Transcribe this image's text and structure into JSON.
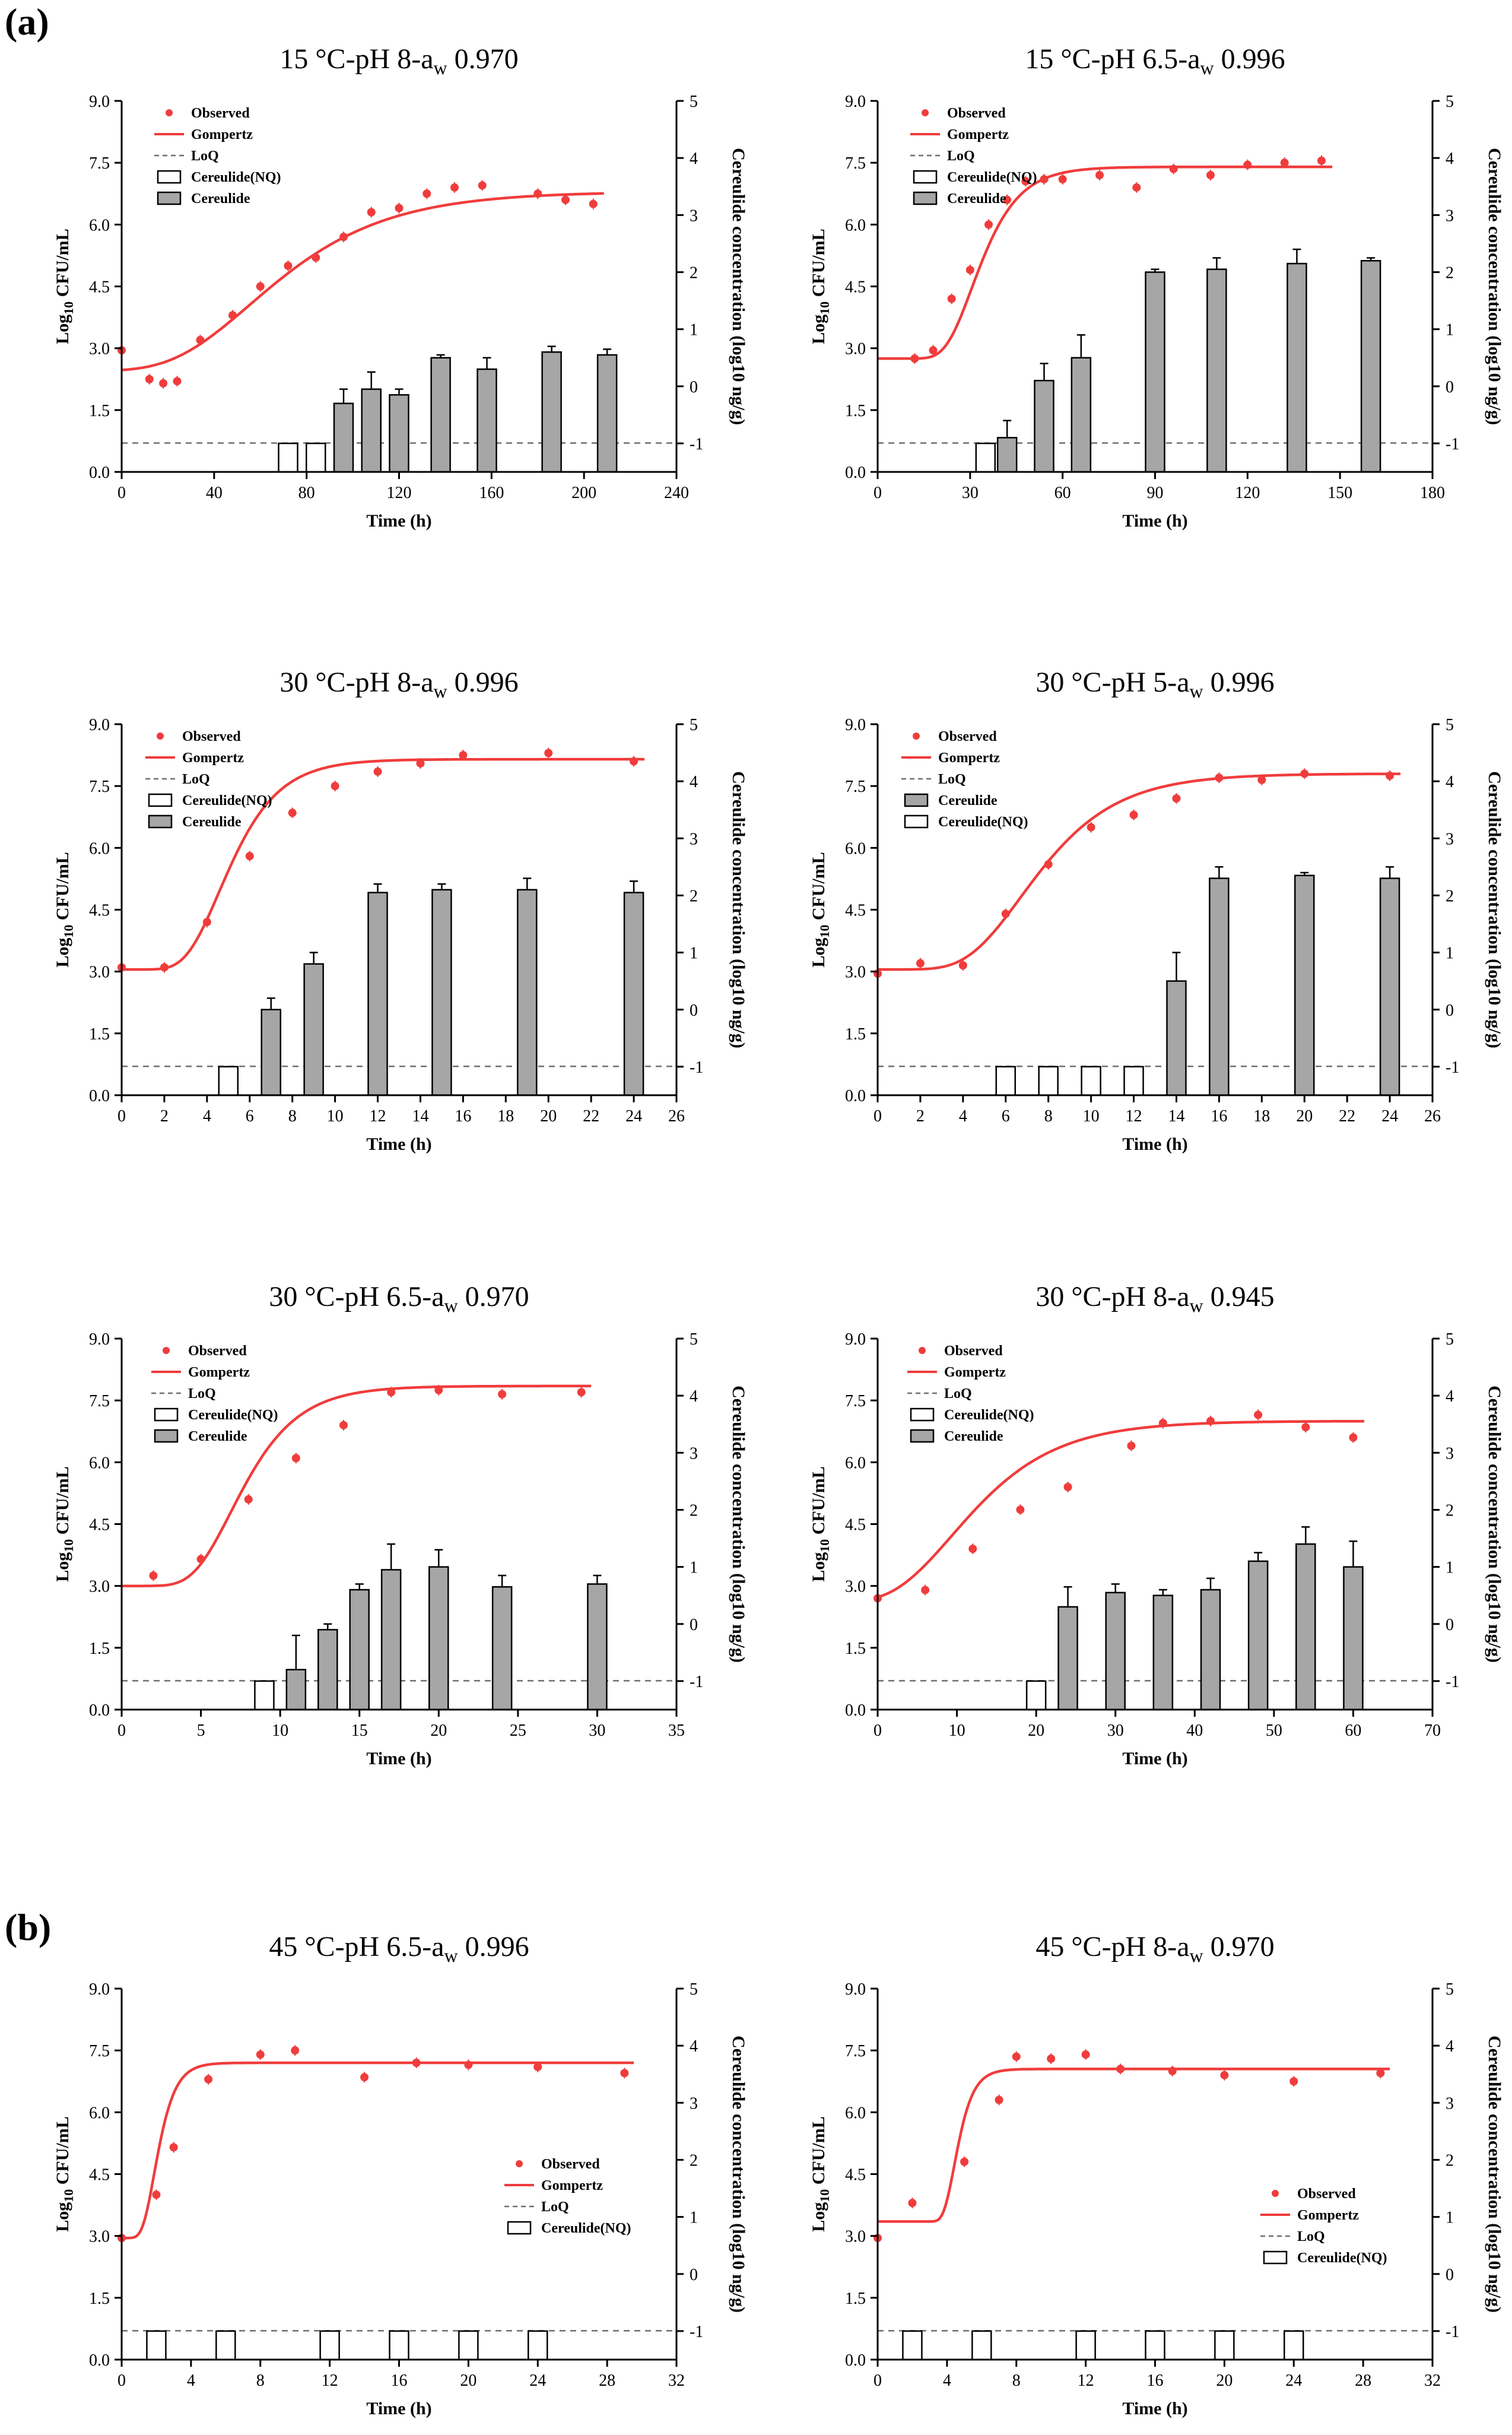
{
  "panel_labels": {
    "a": "(a)",
    "b": "(b)"
  },
  "legend_labels": {
    "observed": "Observed",
    "gompertz": "Gompertz",
    "loq": "LoQ",
    "nq": "Cereulide(NQ)",
    "cer": "Cereulide"
  },
  "chart_data": [
    {
      "type": "bar+scatter+line",
      "title_pre": "15 °C-pH 8-a",
      "title_sub": "w",
      "title_post": " 0.970",
      "xlabel": "Time (h)",
      "ylabel_main": "Log",
      "ylabel_sub": "10",
      "ylabel_post": " CFU/mL",
      "y2label": "Cereulide concentration (log10 ng/g)",
      "xlim": [
        0,
        240
      ],
      "xticks": [
        0,
        40,
        80,
        120,
        160,
        200,
        240
      ],
      "ylim": [
        0,
        9
      ],
      "yticks": [
        "0.0",
        "1.5",
        "3.0",
        "4.5",
        "6.0",
        "7.5",
        "9.0"
      ],
      "y2lim": [
        -1.5,
        5
      ],
      "y2ticks": [
        -1,
        0,
        1,
        2,
        3,
        4,
        5
      ],
      "loq": 0.7,
      "legend": [
        "observed",
        "gompertz",
        "loq",
        "nq",
        "cer"
      ],
      "gompertz": {
        "y0": 2.45,
        "A": 4.35,
        "mu": 0.048,
        "lambda": 22
      },
      "observed": [
        [
          0,
          2.95
        ],
        [
          12,
          2.25
        ],
        [
          18,
          2.15
        ],
        [
          24,
          2.2
        ],
        [
          34,
          3.2
        ],
        [
          48,
          3.8
        ],
        [
          60,
          4.5
        ],
        [
          72,
          5.0
        ],
        [
          84,
          5.2
        ],
        [
          96,
          5.7
        ],
        [
          108,
          6.3
        ],
        [
          120,
          6.4
        ],
        [
          132,
          6.75
        ],
        [
          144,
          6.9
        ],
        [
          156,
          6.95
        ],
        [
          180,
          6.75
        ],
        [
          192,
          6.6
        ],
        [
          204,
          6.5
        ]
      ],
      "bars": [
        {
          "x": 72,
          "v": -1,
          "nq": true
        },
        {
          "x": 84,
          "v": -1,
          "nq": true
        },
        {
          "x": 96,
          "v": -0.3,
          "err": 0.25
        },
        {
          "x": 108,
          "v": -0.05,
          "err": 0.3
        },
        {
          "x": 120,
          "v": -0.15,
          "err": 0.1
        },
        {
          "x": 138,
          "v": 0.5,
          "err": 0.05
        },
        {
          "x": 158,
          "v": 0.3,
          "err": 0.2
        },
        {
          "x": 186,
          "v": 0.6,
          "err": 0.1
        },
        {
          "x": 210,
          "v": 0.55,
          "err": 0.1
        }
      ]
    },
    {
      "type": "bar+scatter+line",
      "title_pre": "15 °C-pH 6.5-a",
      "title_sub": "w",
      "title_post": " 0.996",
      "xlabel": "Time (h)",
      "ylabel_main": "Log",
      "ylabel_sub": "10",
      "ylabel_post": " CFU/mL",
      "y2label": "Cereulide concentration (log10 ng/g)",
      "xlim": [
        0,
        180
      ],
      "xticks": [
        0,
        30,
        60,
        90,
        120,
        150,
        180
      ],
      "ylim": [
        0,
        9
      ],
      "yticks": [
        "0.0",
        "1.5",
        "3.0",
        "4.5",
        "6.0",
        "7.5",
        "9.0"
      ],
      "y2lim": [
        -1.5,
        5
      ],
      "y2ticks": [
        -1,
        0,
        1,
        2,
        3,
        4,
        5
      ],
      "loq": 0.7,
      "legend": [
        "observed",
        "gompertz",
        "loq",
        "nq",
        "cer"
      ],
      "gompertz": {
        "y0": 2.75,
        "A": 4.65,
        "mu": 0.2,
        "lambda": 22
      },
      "observed": [
        [
          12,
          2.75
        ],
        [
          18,
          2.95
        ],
        [
          24,
          4.2
        ],
        [
          30,
          4.9
        ],
        [
          36,
          6.0
        ],
        [
          42,
          6.6
        ],
        [
          48,
          7.05
        ],
        [
          54,
          7.1
        ],
        [
          60,
          7.1
        ],
        [
          72,
          7.2
        ],
        [
          84,
          6.9
        ],
        [
          96,
          7.35
        ],
        [
          108,
          7.2
        ],
        [
          120,
          7.45
        ],
        [
          132,
          7.5
        ],
        [
          144,
          7.55
        ]
      ],
      "bars": [
        {
          "x": 35,
          "v": -1,
          "nq": true
        },
        {
          "x": 42,
          "v": -0.9,
          "err": 0.3
        },
        {
          "x": 54,
          "v": 0.1,
          "err": 0.3
        },
        {
          "x": 66,
          "v": 0.5,
          "err": 0.4
        },
        {
          "x": 90,
          "v": 2.0,
          "err": 0.05
        },
        {
          "x": 110,
          "v": 2.05,
          "err": 0.2
        },
        {
          "x": 136,
          "v": 2.15,
          "err": 0.25
        },
        {
          "x": 160,
          "v": 2.2,
          "err": 0.05
        }
      ]
    },
    {
      "type": "bar+scatter+line",
      "title_pre": "30 °C-pH 8-a",
      "title_sub": "w",
      "title_post": " 0.996",
      "xlabel": "Time (h)",
      "ylabel_main": "Log",
      "ylabel_sub": "10",
      "ylabel_post": " CFU/mL",
      "y2label": "Cereulide concentration (log10 ng/g)",
      "xlim": [
        0,
        26
      ],
      "xticks": [
        0,
        2,
        4,
        6,
        8,
        10,
        12,
        14,
        16,
        18,
        20,
        22,
        24,
        26
      ],
      "ylim": [
        0,
        9
      ],
      "yticks": [
        "0.0",
        "1.5",
        "3.0",
        "4.5",
        "6.0",
        "7.5",
        "9.0"
      ],
      "y2lim": [
        -1.5,
        5
      ],
      "y2ticks": [
        -1,
        0,
        1,
        2,
        3,
        4,
        5
      ],
      "loq": 0.7,
      "legend": [
        "observed",
        "gompertz",
        "loq",
        "nq",
        "cer"
      ],
      "gompertz": {
        "y0": 3.05,
        "A": 5.1,
        "mu": 1.2,
        "lambda": 3.0
      },
      "observed": [
        [
          0,
          3.1
        ],
        [
          2,
          3.1
        ],
        [
          4,
          4.2
        ],
        [
          6,
          5.8
        ],
        [
          8,
          6.85
        ],
        [
          10,
          7.5
        ],
        [
          12,
          7.85
        ],
        [
          14,
          8.05
        ],
        [
          16,
          8.25
        ],
        [
          20,
          8.3
        ],
        [
          24,
          8.1
        ]
      ],
      "bars": [
        {
          "x": 5,
          "v": -1,
          "nq": true
        },
        {
          "x": 7,
          "v": 0,
          "err": 0.2
        },
        {
          "x": 9,
          "v": 0.8,
          "err": 0.2
        },
        {
          "x": 12,
          "v": 2.05,
          "err": 0.15
        },
        {
          "x": 15,
          "v": 2.1,
          "err": 0.1
        },
        {
          "x": 19,
          "v": 2.1,
          "err": 0.2
        },
        {
          "x": 24,
          "v": 2.05,
          "err": 0.2
        }
      ]
    },
    {
      "type": "bar+scatter+line",
      "title_pre": "30 °C-pH 5-a",
      "title_sub": "w",
      "title_post": " 0.996",
      "xlabel": "Time (h)",
      "ylabel_main": "Log",
      "ylabel_sub": "10",
      "ylabel_post": " CFU/mL",
      "y2label": "Cereulide concentration (log10 ng/g)",
      "xlim": [
        0,
        26
      ],
      "xticks": [
        0,
        2,
        4,
        6,
        8,
        10,
        12,
        14,
        16,
        18,
        20,
        22,
        24,
        26
      ],
      "ylim": [
        0,
        9
      ],
      "yticks": [
        "0.0",
        "1.5",
        "3.0",
        "4.5",
        "6.0",
        "7.5",
        "9.0"
      ],
      "y2lim": [
        -1.5,
        5
      ],
      "y2ticks": [
        -1,
        0,
        1,
        2,
        3,
        4,
        5
      ],
      "loq": 0.7,
      "legend": [
        "observed",
        "gompertz",
        "loq",
        "cer",
        "nq"
      ],
      "gompertz": {
        "y0": 3.05,
        "A": 4.75,
        "mu": 0.7,
        "lambda": 4.2
      },
      "observed": [
        [
          0,
          2.95
        ],
        [
          2,
          3.2
        ],
        [
          4,
          3.15
        ],
        [
          6,
          4.4
        ],
        [
          8,
          5.6
        ],
        [
          10,
          6.5
        ],
        [
          12,
          6.8
        ],
        [
          14,
          7.2
        ],
        [
          16,
          7.7
        ],
        [
          18,
          7.65
        ],
        [
          20,
          7.8
        ],
        [
          24,
          7.75
        ]
      ],
      "bars": [
        {
          "x": 6,
          "v": -1,
          "nq": true
        },
        {
          "x": 8,
          "v": -1,
          "nq": true
        },
        {
          "x": 10,
          "v": -1,
          "nq": true
        },
        {
          "x": 12,
          "v": -1,
          "nq": true
        },
        {
          "x": 14,
          "v": 0.5,
          "err": 0.5
        },
        {
          "x": 16,
          "v": 2.3,
          "err": 0.2
        },
        {
          "x": 20,
          "v": 2.35,
          "err": 0.05
        },
        {
          "x": 24,
          "v": 2.3,
          "err": 0.2
        }
      ]
    },
    {
      "type": "bar+scatter+line",
      "title_pre": "30 °C-pH 6.5-a",
      "title_sub": "w",
      "title_post": " 0.970",
      "xlabel": "Time (h)",
      "ylabel_main": "Log",
      "ylabel_sub": "10",
      "ylabel_post": " CFU/mL",
      "y2label": "Cereulide concentration (log10 ng/g)",
      "xlim": [
        0,
        35
      ],
      "xticks": [
        0,
        5,
        10,
        15,
        20,
        25,
        30,
        35
      ],
      "ylim": [
        0,
        9
      ],
      "yticks": [
        "0.0",
        "1.5",
        "3.0",
        "4.5",
        "6.0",
        "7.5",
        "9.0"
      ],
      "y2lim": [
        -1.5,
        5
      ],
      "y2ticks": [
        -1,
        0,
        1,
        2,
        3,
        4,
        5
      ],
      "loq": 0.7,
      "legend": [
        "observed",
        "gompertz",
        "loq",
        "nq",
        "cer"
      ],
      "gompertz": {
        "y0": 3.0,
        "A": 4.85,
        "mu": 0.75,
        "lambda": 4.5
      },
      "observed": [
        [
          2,
          3.25
        ],
        [
          5,
          3.65
        ],
        [
          8,
          5.1
        ],
        [
          11,
          6.1
        ],
        [
          14,
          6.9
        ],
        [
          17,
          7.7
        ],
        [
          20,
          7.75
        ],
        [
          24,
          7.65
        ],
        [
          29,
          7.7
        ]
      ],
      "bars": [
        {
          "x": 9,
          "v": -1,
          "nq": true
        },
        {
          "x": 11,
          "v": -0.8,
          "err": 0.6
        },
        {
          "x": 13,
          "v": -0.1,
          "err": 0.1
        },
        {
          "x": 15,
          "v": 0.6,
          "err": 0.1
        },
        {
          "x": 17,
          "v": 0.95,
          "err": 0.45
        },
        {
          "x": 20,
          "v": 1.0,
          "err": 0.3
        },
        {
          "x": 24,
          "v": 0.65,
          "err": 0.2
        },
        {
          "x": 30,
          "v": 0.7,
          "err": 0.15
        }
      ]
    },
    {
      "type": "bar+scatter+line",
      "title_pre": "30 °C-pH 8-a",
      "title_sub": "w",
      "title_post": " 0.945",
      "xlabel": "Time (h)",
      "ylabel_main": "Log",
      "ylabel_sub": "10",
      "ylabel_post": " CFU/mL",
      "y2label": "Cereulide concentration (log10 ng/g)",
      "xlim": [
        0,
        70
      ],
      "xticks": [
        0,
        10,
        20,
        30,
        40,
        50,
        60,
        70
      ],
      "ylim": [
        0,
        9
      ],
      "yticks": [
        "0.0",
        "1.5",
        "3.0",
        "4.5",
        "6.0",
        "7.5",
        "9.0"
      ],
      "y2lim": [
        -1.5,
        5
      ],
      "y2ticks": [
        -1,
        0,
        1,
        2,
        3,
        4,
        5
      ],
      "loq": 0.7,
      "legend": [
        "observed",
        "gompertz",
        "loq",
        "nq",
        "cer"
      ],
      "gompertz": {
        "y0": 2.6,
        "A": 4.4,
        "mu": 0.22,
        "lambda": 2.0
      },
      "observed": [
        [
          0,
          2.7
        ],
        [
          6,
          2.9
        ],
        [
          12,
          3.9
        ],
        [
          18,
          4.85
        ],
        [
          24,
          5.4
        ],
        [
          32,
          6.4
        ],
        [
          36,
          6.95
        ],
        [
          42,
          7.0
        ],
        [
          48,
          7.15
        ],
        [
          54,
          6.85
        ],
        [
          60,
          6.6
        ]
      ],
      "bars": [
        {
          "x": 20,
          "v": -1,
          "nq": true
        },
        {
          "x": 24,
          "v": 0.3,
          "err": 0.35
        },
        {
          "x": 30,
          "v": 0.55,
          "err": 0.15
        },
        {
          "x": 36,
          "v": 0.5,
          "err": 0.1
        },
        {
          "x": 42,
          "v": 0.6,
          "err": 0.2
        },
        {
          "x": 48,
          "v": 1.1,
          "err": 0.15
        },
        {
          "x": 54,
          "v": 1.4,
          "err": 0.3
        },
        {
          "x": 60,
          "v": 1.0,
          "err": 0.45
        }
      ]
    },
    {
      "type": "bar+scatter+line",
      "title_pre": "45 °C-pH 6.5-a",
      "title_sub": "w",
      "title_post": " 0.996",
      "xlabel": "Time (h)",
      "ylabel_main": "Log",
      "ylabel_sub": "10",
      "ylabel_post": " CFU/mL",
      "y2label": "Cereulide concentration (log10 ng/g)",
      "xlim": [
        0,
        32
      ],
      "xticks": [
        0,
        4,
        8,
        12,
        16,
        20,
        24,
        28,
        32
      ],
      "ylim": [
        0,
        9
      ],
      "yticks": [
        "0.0",
        "1.5",
        "3.0",
        "4.5",
        "6.0",
        "7.5",
        "9.0"
      ],
      "y2lim": [
        -1.5,
        5
      ],
      "y2ticks": [
        -1,
        0,
        1,
        2,
        3,
        4,
        5
      ],
      "loq": 0.7,
      "legend": [
        "observed",
        "gompertz",
        "loq",
        "nq"
      ],
      "gompertz": {
        "y0": 2.95,
        "A": 4.25,
        "mu": 2.3,
        "lambda": 1.2
      },
      "observed": [
        [
          0,
          2.95
        ],
        [
          2,
          4.0
        ],
        [
          3,
          5.15
        ],
        [
          5,
          6.8
        ],
        [
          8,
          7.4
        ],
        [
          10,
          7.5
        ],
        [
          14,
          6.85
        ],
        [
          17,
          7.2
        ],
        [
          20,
          7.15
        ],
        [
          24,
          7.1
        ],
        [
          29,
          6.95
        ]
      ],
      "bars": [
        {
          "x": 2,
          "v": -1,
          "nq": true
        },
        {
          "x": 6,
          "v": -1,
          "nq": true
        },
        {
          "x": 12,
          "v": -1,
          "nq": true
        },
        {
          "x": 16,
          "v": -1,
          "nq": true
        },
        {
          "x": 20,
          "v": -1,
          "nq": true
        },
        {
          "x": 24,
          "v": -1,
          "nq": true
        }
      ]
    },
    {
      "type": "bar+scatter+line",
      "title_pre": "45 °C-pH 8-a",
      "title_sub": "w",
      "title_post": " 0.970",
      "xlabel": "Time (h)",
      "ylabel_main": "Log",
      "ylabel_sub": "10",
      "ylabel_post": " CFU/mL",
      "y2label": "Cereulide concentration (log10 ng/g)",
      "xlim": [
        0,
        32
      ],
      "xticks": [
        0,
        4,
        8,
        12,
        16,
        20,
        24,
        28,
        32
      ],
      "ylim": [
        0,
        9
      ],
      "yticks": [
        "0.0",
        "1.5",
        "3.0",
        "4.5",
        "6.0",
        "7.5",
        "9.0"
      ],
      "y2lim": [
        -1.5,
        5
      ],
      "y2ticks": [
        -1,
        0,
        1,
        2,
        3,
        4,
        5
      ],
      "loq": 0.7,
      "legend": [
        "observed",
        "gompertz",
        "loq",
        "nq"
      ],
      "gompertz": {
        "y0": 3.35,
        "A": 3.7,
        "mu": 2.2,
        "lambda": 3.8
      },
      "observed": [
        [
          0,
          2.95
        ],
        [
          2,
          3.8
        ],
        [
          5,
          4.8
        ],
        [
          7,
          6.3
        ],
        [
          8,
          7.35
        ],
        [
          10,
          7.3
        ],
        [
          12,
          7.4
        ],
        [
          14,
          7.05
        ],
        [
          17,
          7.0
        ],
        [
          20,
          6.9
        ],
        [
          24,
          6.75
        ],
        [
          29,
          6.95
        ]
      ],
      "bars": [
        {
          "x": 2,
          "v": -1,
          "nq": true
        },
        {
          "x": 6,
          "v": -1,
          "nq": true
        },
        {
          "x": 12,
          "v": -1,
          "nq": true
        },
        {
          "x": 16,
          "v": -1,
          "nq": true
        },
        {
          "x": 20,
          "v": -1,
          "nq": true
        },
        {
          "x": 24,
          "v": -1,
          "nq": true
        }
      ]
    }
  ]
}
